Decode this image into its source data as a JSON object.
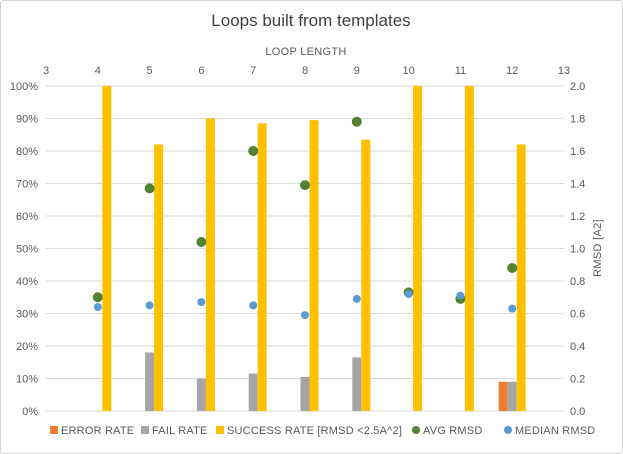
{
  "chart_data": {
    "type": "bar",
    "title": "Loops built from templates",
    "x_axis": {
      "label": "LOOP LENGTH",
      "position": "top",
      "min": 3,
      "max": 13,
      "ticks": [
        "3",
        "4",
        "5",
        "6",
        "7",
        "8",
        "9",
        "10",
        "11",
        "12",
        "13"
      ]
    },
    "y_axis_left": {
      "min": 0,
      "max": 100,
      "unit": "%",
      "ticks": [
        "0%",
        "10%",
        "20%",
        "30%",
        "40%",
        "50%",
        "60%",
        "70%",
        "80%",
        "90%",
        "100%"
      ]
    },
    "y_axis_right": {
      "label": "RMSD [A2]",
      "min": 0,
      "max": 2.0,
      "ticks": [
        "0.0",
        "0.2",
        "0.4",
        "0.6",
        "0.8",
        "1.0",
        "1.2",
        "1.4",
        "1.6",
        "1.8",
        "2.0"
      ]
    },
    "grid": "horizontal",
    "legend_position": "bottom",
    "series": [
      {
        "name": "ERROR RATE",
        "kind": "bar",
        "axis": "left",
        "color": "#ED7D31",
        "points": [
          {
            "x": 12,
            "y": 9
          }
        ]
      },
      {
        "name": "FAIL RATE",
        "kind": "bar",
        "axis": "left",
        "color": "#A5A5A5",
        "points": [
          {
            "x": 5,
            "y": 18
          },
          {
            "x": 6,
            "y": 10
          },
          {
            "x": 7,
            "y": 11.5
          },
          {
            "x": 8,
            "y": 10.5
          },
          {
            "x": 9,
            "y": 16.5
          },
          {
            "x": 12,
            "y": 9
          }
        ]
      },
      {
        "name": "SUCCESS RATE [RMSD <2.5A^2]",
        "kind": "bar",
        "axis": "left",
        "color": "#FFC000",
        "points": [
          {
            "x": 4,
            "y": 100
          },
          {
            "x": 5,
            "y": 82
          },
          {
            "x": 6,
            "y": 90
          },
          {
            "x": 7,
            "y": 88.5
          },
          {
            "x": 8,
            "y": 89.5
          },
          {
            "x": 9,
            "y": 83.5
          },
          {
            "x": 10,
            "y": 100
          },
          {
            "x": 11,
            "y": 100
          },
          {
            "x": 12,
            "y": 82
          }
        ]
      },
      {
        "name": "AVG RMSD",
        "kind": "scatter",
        "axis": "right",
        "color": "#548235",
        "points": [
          {
            "x": 4,
            "y": 0.7
          },
          {
            "x": 5,
            "y": 1.37
          },
          {
            "x": 6,
            "y": 1.04
          },
          {
            "x": 7,
            "y": 1.6
          },
          {
            "x": 8,
            "y": 1.39
          },
          {
            "x": 9,
            "y": 1.78
          },
          {
            "x": 10,
            "y": 0.73
          },
          {
            "x": 11,
            "y": 0.69
          },
          {
            "x": 12,
            "y": 0.88
          }
        ]
      },
      {
        "name": "MEDIAN RMSD",
        "kind": "scatter",
        "axis": "right",
        "color": "#5B9BD5",
        "points": [
          {
            "x": 4,
            "y": 0.64
          },
          {
            "x": 5,
            "y": 0.65
          },
          {
            "x": 6,
            "y": 0.67
          },
          {
            "x": 7,
            "y": 0.65
          },
          {
            "x": 8,
            "y": 0.59
          },
          {
            "x": 9,
            "y": 0.69
          },
          {
            "x": 10,
            "y": 0.72
          },
          {
            "x": 11,
            "y": 0.71
          },
          {
            "x": 12,
            "y": 0.63
          }
        ]
      }
    ]
  }
}
